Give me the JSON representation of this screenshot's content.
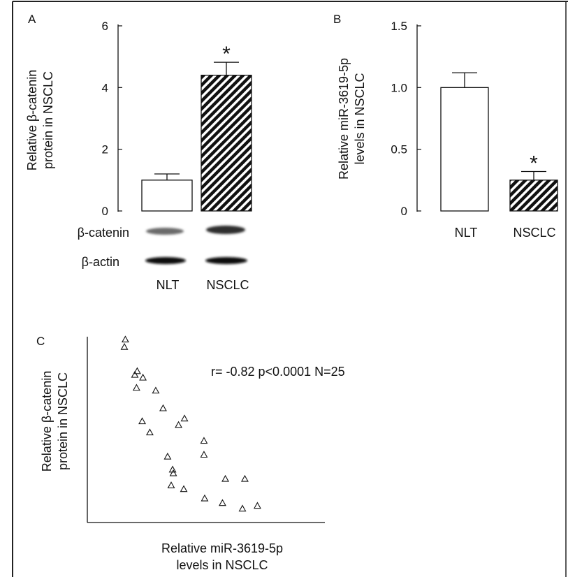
{
  "chart_data": [
    {
      "panel": "A",
      "type": "bar",
      "ylabel": [
        "Relative β-catenin",
        "protein in NSCLC"
      ],
      "ylim": [
        0,
        6
      ],
      "yticks": [
        "0",
        "2",
        "4",
        "6"
      ],
      "categories": [
        "NLT",
        "NSCLC"
      ],
      "values": [
        1.0,
        4.4
      ],
      "errors": [
        0.2,
        0.42
      ],
      "patterns": [
        "none",
        "hatched"
      ],
      "significance": [
        "",
        "*"
      ],
      "blot_labels": [
        "β-catenin",
        "β-actin"
      ]
    },
    {
      "panel": "B",
      "type": "bar",
      "ylabel": [
        "Relative miR-3619-5p",
        "levels in NSCLC"
      ],
      "ylim": [
        0,
        1.5
      ],
      "yticks": [
        "0",
        "0.5",
        "1.0",
        "1.5"
      ],
      "categories": [
        "NLT",
        "NSCLC"
      ],
      "values": [
        1.0,
        0.25
      ],
      "errors": [
        0.12,
        0.07
      ],
      "patterns": [
        "none",
        "hatched"
      ],
      "significance": [
        "",
        "*"
      ]
    },
    {
      "panel": "C",
      "type": "scatter",
      "xlabel": [
        "Relative miR-3619-5p",
        "levels in NSCLC"
      ],
      "ylabel": [
        "Relative β-catenin",
        "protein in NSCLC"
      ],
      "xlim": [
        0,
        10
      ],
      "ylim": [
        0,
        10
      ],
      "annotation": "r= -0.82 p<0.0001 N=25",
      "marker": "open-triangle",
      "points": [
        {
          "x": 1.56,
          "y": 9.45
        },
        {
          "x": 1.6,
          "y": 9.85
        },
        {
          "x": 2.0,
          "y": 7.95
        },
        {
          "x": 2.1,
          "y": 8.15
        },
        {
          "x": 2.34,
          "y": 7.8
        },
        {
          "x": 2.07,
          "y": 7.25
        },
        {
          "x": 2.88,
          "y": 7.1
        },
        {
          "x": 3.19,
          "y": 6.15
        },
        {
          "x": 2.31,
          "y": 5.45
        },
        {
          "x": 2.63,
          "y": 4.85
        },
        {
          "x": 3.84,
          "y": 5.25
        },
        {
          "x": 4.09,
          "y": 5.6
        },
        {
          "x": 4.91,
          "y": 4.4
        },
        {
          "x": 4.91,
          "y": 3.65
        },
        {
          "x": 3.38,
          "y": 3.55
        },
        {
          "x": 3.59,
          "y": 2.85
        },
        {
          "x": 3.62,
          "y": 2.65
        },
        {
          "x": 3.53,
          "y": 2.0
        },
        {
          "x": 4.06,
          "y": 1.8
        },
        {
          "x": 4.94,
          "y": 1.3
        },
        {
          "x": 5.81,
          "y": 2.35
        },
        {
          "x": 5.69,
          "y": 1.05
        },
        {
          "x": 6.63,
          "y": 2.35
        },
        {
          "x": 6.53,
          "y": 0.75
        },
        {
          "x": 7.16,
          "y": 0.9
        }
      ]
    }
  ]
}
